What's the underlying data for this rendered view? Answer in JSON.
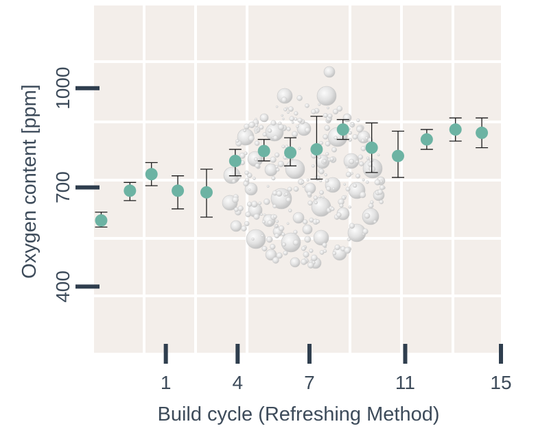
{
  "chart_data": {
    "type": "scatter",
    "xlabel": "Build cycle (Refreshing Method)",
    "ylabel": "Oxygen content  [ppm]",
    "xlim": [
      -2,
      15
    ],
    "ylim": [
      200,
      1250
    ],
    "x_ticks": [
      1,
      4,
      7,
      11,
      15
    ],
    "y_ticks": [
      400,
      700,
      1000
    ],
    "grid": true,
    "legend": "none",
    "colors": {
      "panel": "#f3eeea",
      "grid": "#ffffff",
      "point": "#6cb3a3",
      "error_bar": "#1a1a1a",
      "tick": "#2f3e4e",
      "text": "#3d4b5a",
      "bubbles": "#d4d4d4"
    },
    "series": [
      {
        "points": [
          {
            "x": -1.7,
            "y": 600,
            "err_low": 580,
            "err_high": 625
          },
          {
            "x": -0.5,
            "y": 690,
            "err_low": 660,
            "err_high": 715
          },
          {
            "x": 0.4,
            "y": 740,
            "err_low": 705,
            "err_high": 775
          },
          {
            "x": 1.5,
            "y": 690,
            "err_low": 635,
            "err_high": 735
          },
          {
            "x": 2.7,
            "y": 685,
            "err_low": 610,
            "err_high": 755
          },
          {
            "x": 3.9,
            "y": 780,
            "err_low": 735,
            "err_high": 815
          },
          {
            "x": 5.1,
            "y": 810,
            "err_low": 780,
            "err_high": 845
          },
          {
            "x": 6.2,
            "y": 805,
            "err_low": 765,
            "err_high": 850
          },
          {
            "x": 7.3,
            "y": 815,
            "err_low": 725,
            "err_high": 915
          },
          {
            "x": 8.4,
            "y": 875,
            "err_low": 845,
            "err_high": 905
          },
          {
            "x": 9.6,
            "y": 820,
            "err_low": 745,
            "err_high": 895
          },
          {
            "x": 10.7,
            "y": 795,
            "err_low": 730,
            "err_high": 870
          },
          {
            "x": 11.9,
            "y": 845,
            "err_low": 815,
            "err_high": 875
          },
          {
            "x": 13.1,
            "y": 875,
            "err_low": 840,
            "err_high": 910
          },
          {
            "x": 14.2,
            "y": 865,
            "err_low": 820,
            "err_high": 910
          }
        ]
      }
    ]
  }
}
